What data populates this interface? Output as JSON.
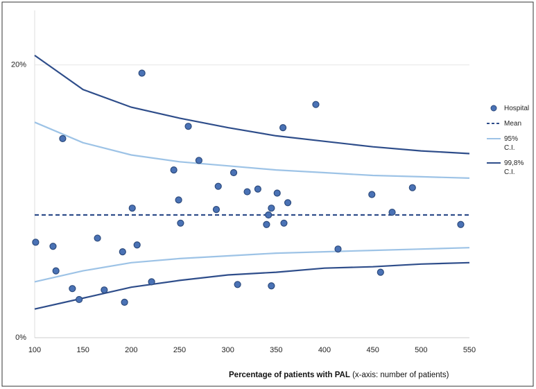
{
  "chart_data": {
    "type": "scatter",
    "x_label": "Percentage of patients with PAL",
    "x_label_note": "(x-axis: number of patients)",
    "xlim": [
      100,
      550
    ],
    "xticks": [
      100,
      150,
      200,
      250,
      300,
      350,
      400,
      450,
      500,
      550
    ],
    "ylim": [
      0,
      24
    ],
    "yticks": [
      {
        "value": 0,
        "label": "0%"
      },
      {
        "value": 20,
        "label": "20%"
      }
    ],
    "grid": true,
    "legend": "right",
    "series": [
      {
        "name": "Hospital",
        "kind": "scatter",
        "color": "#4a72b5",
        "x": [
          101,
          119,
          129,
          122,
          139,
          146,
          165,
          172,
          191,
          193,
          201,
          206,
          211,
          221,
          244,
          249,
          251,
          259,
          270,
          288,
          290,
          306,
          310,
          320,
          331,
          340,
          342,
          345,
          345,
          351,
          357,
          358,
          362,
          391,
          414,
          449,
          458,
          470,
          491,
          541
        ],
        "values": [
          7.0,
          6.7,
          14.6,
          4.9,
          3.6,
          2.8,
          7.3,
          3.5,
          6.3,
          2.6,
          9.5,
          6.8,
          19.4,
          4.1,
          12.3,
          10.1,
          8.4,
          15.5,
          13.0,
          9.4,
          11.1,
          12.1,
          3.9,
          10.7,
          10.9,
          8.3,
          9.0,
          9.5,
          3.8,
          10.6,
          15.4,
          8.4,
          9.9,
          17.1,
          6.5,
          10.5,
          4.8,
          9.2,
          11.0,
          8.3
        ]
      },
      {
        "name": "Mean",
        "kind": "line",
        "dash": true,
        "color": "#2e4d8a",
        "x": [
          100,
          550
        ],
        "values": [
          9.0,
          9.0
        ]
      },
      {
        "name": "95% C.I.",
        "kind": "line",
        "color": "#9dc3e6",
        "x": [
          100,
          150,
          200,
          250,
          300,
          350,
          400,
          450,
          500,
          550
        ],
        "values": [
          15.8,
          14.3,
          13.4,
          12.9,
          12.6,
          12.3,
          12.1,
          11.9,
          11.8,
          11.7
        ],
        "lower": [
          4.1,
          4.9,
          5.5,
          5.8,
          6.0,
          6.2,
          6.3,
          6.4,
          6.5,
          6.6
        ]
      },
      {
        "name": "99,8% C.I.",
        "kind": "line",
        "color": "#2e4d8a",
        "x": [
          100,
          150,
          200,
          250,
          300,
          350,
          400,
          450,
          500,
          550
        ],
        "values": [
          20.7,
          18.2,
          16.9,
          16.1,
          15.4,
          14.8,
          14.4,
          14.0,
          13.7,
          13.5
        ],
        "lower": [
          2.1,
          2.9,
          3.7,
          4.2,
          4.6,
          4.8,
          5.1,
          5.2,
          5.4,
          5.5
        ]
      }
    ]
  }
}
